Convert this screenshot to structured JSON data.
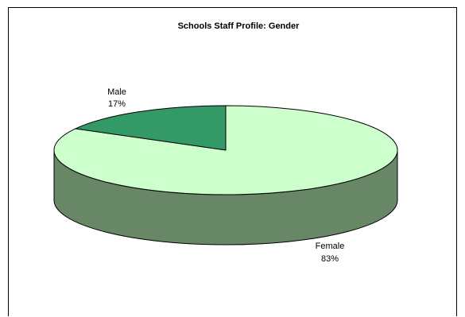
{
  "chart_data": {
    "type": "pie",
    "title": "Schools Staff Profile: Gender",
    "style": "3d",
    "slices": [
      {
        "name": "Male",
        "value": 17,
        "label": "17%",
        "color": "#339966"
      },
      {
        "name": "Female",
        "value": 83,
        "label": "83%",
        "color": "#ccffcc"
      }
    ],
    "side_colors": {
      "Female": "#678767",
      "Male": "#1f5c3d"
    },
    "legend": "none"
  }
}
